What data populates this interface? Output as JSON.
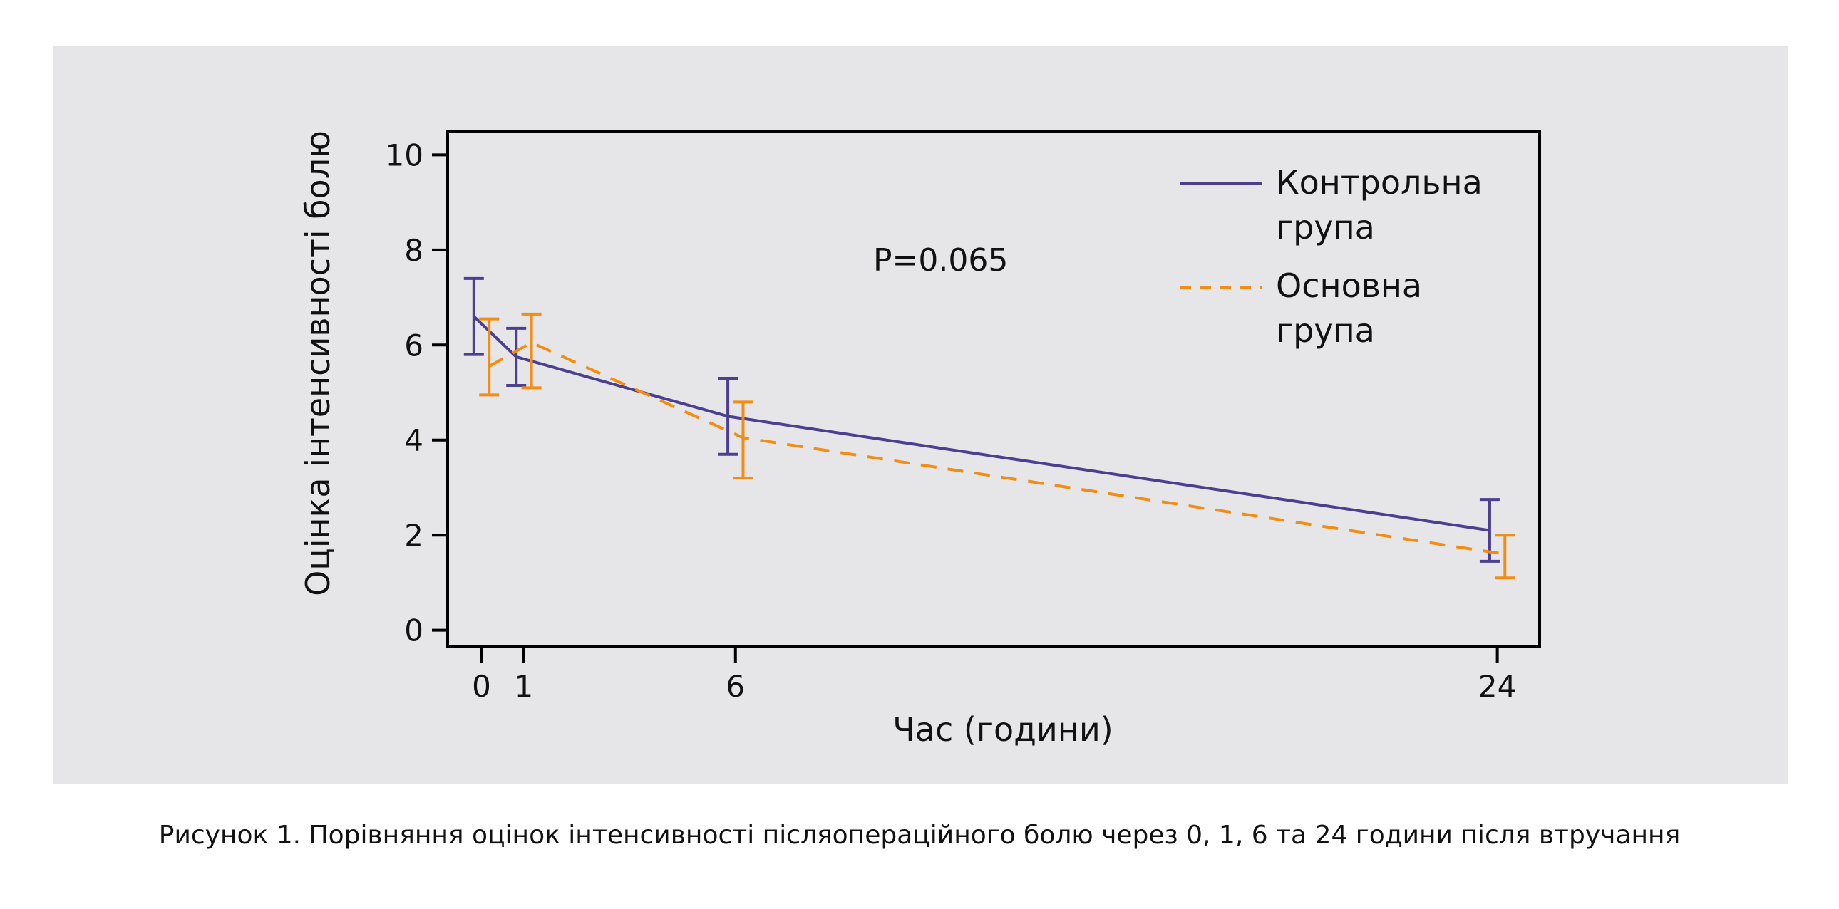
{
  "caption": "Рисунок 1. Порівняння оцінок інтенсивності післяопераційного болю через 0, 1, 6 та 24 години після втручання",
  "chart_data": {
    "type": "line",
    "title": "",
    "xlabel": "Час (години)",
    "ylabel": "Оцінка інтенсивності болю",
    "x": [
      0,
      1,
      6,
      24
    ],
    "xlim": [
      -0.8,
      25
    ],
    "ylim": [
      -0.35,
      10.5
    ],
    "yticks": [
      0,
      2,
      4,
      6,
      8,
      10
    ],
    "xticks": [
      0,
      1,
      6,
      24
    ],
    "grid": false,
    "legend_position": "top-right",
    "annotation": "P=0.065",
    "series": [
      {
        "name": "Контрольна група",
        "color": "#4b3f92",
        "line_style": "solid",
        "values": [
          6.6,
          5.75,
          4.5,
          2.1
        ],
        "err_low": [
          5.8,
          5.15,
          3.7,
          1.45
        ],
        "err_high": [
          7.4,
          6.35,
          5.3,
          2.75
        ]
      },
      {
        "name": "Основна група",
        "color": "#f28c12",
        "line_style": "dashed",
        "values": [
          5.55,
          6.05,
          4.05,
          1.6
        ],
        "err_low": [
          4.95,
          5.1,
          3.2,
          1.1
        ],
        "err_high": [
          6.55,
          6.65,
          4.8,
          2.0
        ]
      }
    ]
  }
}
